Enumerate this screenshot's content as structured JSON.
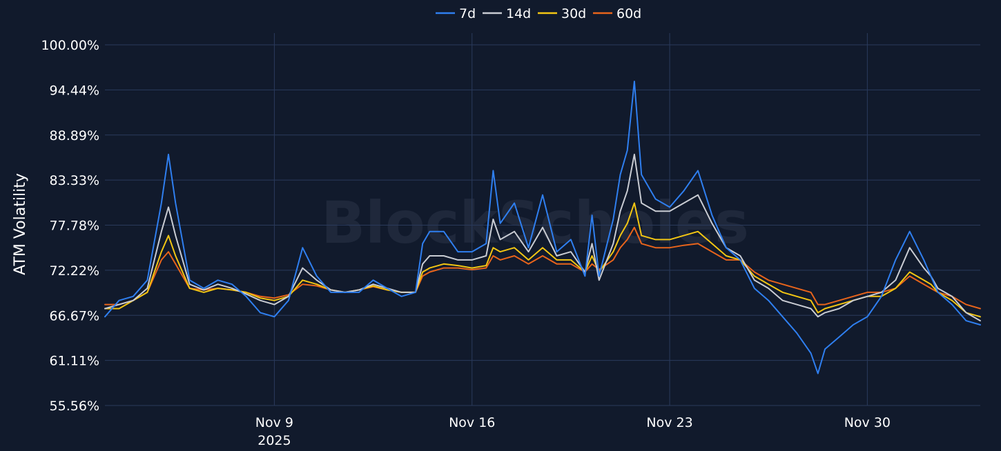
{
  "colors": {
    "background": "#111a2c",
    "grid": "#2a3a5c",
    "text": "#ffffff",
    "watermark": "#2b3448"
  },
  "watermark_text": "BlockScholes",
  "chart_data": {
    "type": "line",
    "ylabel": "ATM Volatility",
    "y_tick_labels": [
      "100.00%",
      "94.44%",
      "88.89%",
      "83.33%",
      "77.78%",
      "72.22%",
      "66.67%",
      "61.11%",
      "55.56%"
    ],
    "y_ticks": [
      100.0,
      94.44,
      88.89,
      83.33,
      77.78,
      72.22,
      66.67,
      61.11,
      55.56
    ],
    "ylim": [
      55.56,
      100.0
    ],
    "x_range": [
      "2025-11-03",
      "2025-12-04"
    ],
    "x_ticks": [
      {
        "date": "2025-11-09",
        "label": "Nov 9",
        "sublabel": "2025"
      },
      {
        "date": "2025-11-16",
        "label": "Nov 16",
        "sublabel": ""
      },
      {
        "date": "2025-11-23",
        "label": "Nov 23",
        "sublabel": ""
      },
      {
        "date": "2025-11-30",
        "label": "Nov 30",
        "sublabel": ""
      }
    ],
    "grid": true,
    "legend_position": "top-center",
    "series": [
      {
        "name": "7d",
        "color": "#2f7ff0",
        "x": [
          "2025-11-03 00:00",
          "2025-11-03 12:00",
          "2025-11-04 00:00",
          "2025-11-04 12:00",
          "2025-11-05 00:00",
          "2025-11-05 06:00",
          "2025-11-05 12:00",
          "2025-11-06 00:00",
          "2025-11-06 12:00",
          "2025-11-07 00:00",
          "2025-11-07 12:00",
          "2025-11-08 00:00",
          "2025-11-08 12:00",
          "2025-11-09 00:00",
          "2025-11-09 12:00",
          "2025-11-10 00:00",
          "2025-11-10 12:00",
          "2025-11-11 00:00",
          "2025-11-11 12:00",
          "2025-11-12 00:00",
          "2025-11-12 12:00",
          "2025-11-13 00:00",
          "2025-11-13 12:00",
          "2025-11-14 00:00",
          "2025-11-14 06:00",
          "2025-11-14 12:00",
          "2025-11-15 00:00",
          "2025-11-15 12:00",
          "2025-11-16 00:00",
          "2025-11-16 12:00",
          "2025-11-16 18:00",
          "2025-11-17 00:00",
          "2025-11-17 12:00",
          "2025-11-18 00:00",
          "2025-11-18 12:00",
          "2025-11-19 00:00",
          "2025-11-19 12:00",
          "2025-11-20 00:00",
          "2025-11-20 06:00",
          "2025-11-20 12:00",
          "2025-11-21 00:00",
          "2025-11-21 06:00",
          "2025-11-21 12:00",
          "2025-11-21 18:00",
          "2025-11-22 00:00",
          "2025-11-22 12:00",
          "2025-11-23 00:00",
          "2025-11-23 12:00",
          "2025-11-24 00:00",
          "2025-11-24 12:00",
          "2025-11-25 00:00",
          "2025-11-25 12:00",
          "2025-11-26 00:00",
          "2025-11-26 12:00",
          "2025-11-27 00:00",
          "2025-11-27 12:00",
          "2025-11-28 00:00",
          "2025-11-28 06:00",
          "2025-11-28 12:00",
          "2025-11-29 00:00",
          "2025-11-29 12:00",
          "2025-11-30 00:00",
          "2025-11-30 12:00",
          "2025-12-01 00:00",
          "2025-12-01 12:00",
          "2025-12-02 00:00",
          "2025-12-02 06:00",
          "2025-12-02 12:00",
          "2025-12-03 00:00",
          "2025-12-03 12:00",
          "2025-12-04 00:00"
        ],
        "values": [
          66.5,
          68.5,
          69.0,
          71.0,
          80.5,
          86.5,
          80.5,
          71.0,
          70.0,
          71.0,
          70.5,
          69.0,
          67.0,
          66.5,
          68.5,
          75.0,
          71.5,
          69.5,
          69.5,
          69.5,
          71.0,
          70.0,
          69.0,
          69.5,
          75.5,
          77.0,
          77.0,
          74.5,
          74.5,
          75.5,
          84.5,
          78.0,
          80.5,
          75.0,
          81.5,
          74.5,
          76.0,
          71.5,
          79.0,
          71.5,
          78.5,
          84.0,
          87.0,
          95.5,
          84.0,
          81.0,
          80.0,
          82.0,
          84.5,
          79.0,
          75.0,
          73.5,
          70.0,
          68.5,
          66.5,
          64.5,
          62.0,
          59.5,
          62.5,
          64.0,
          65.5,
          66.5,
          69.0,
          73.5,
          77.0,
          73.5,
          71.5,
          69.5,
          68.0,
          66.0,
          65.5
        ]
      },
      {
        "name": "14d",
        "color": "#c9ccd3",
        "x": [
          "2025-11-03 00:00",
          "2025-11-03 12:00",
          "2025-11-04 00:00",
          "2025-11-04 12:00",
          "2025-11-05 00:00",
          "2025-11-05 06:00",
          "2025-11-05 12:00",
          "2025-11-06 00:00",
          "2025-11-06 12:00",
          "2025-11-07 00:00",
          "2025-11-07 12:00",
          "2025-11-08 00:00",
          "2025-11-08 12:00",
          "2025-11-09 00:00",
          "2025-11-09 12:00",
          "2025-11-10 00:00",
          "2025-11-10 12:00",
          "2025-11-11 00:00",
          "2025-11-11 12:00",
          "2025-11-12 00:00",
          "2025-11-12 12:00",
          "2025-11-13 00:00",
          "2025-11-13 12:00",
          "2025-11-14 00:00",
          "2025-11-14 06:00",
          "2025-11-14 12:00",
          "2025-11-15 00:00",
          "2025-11-15 12:00",
          "2025-11-16 00:00",
          "2025-11-16 12:00",
          "2025-11-16 18:00",
          "2025-11-17 00:00",
          "2025-11-17 12:00",
          "2025-11-18 00:00",
          "2025-11-18 12:00",
          "2025-11-19 00:00",
          "2025-11-19 12:00",
          "2025-11-20 00:00",
          "2025-11-20 06:00",
          "2025-11-20 12:00",
          "2025-11-21 00:00",
          "2025-11-21 06:00",
          "2025-11-21 12:00",
          "2025-11-21 18:00",
          "2025-11-22 00:00",
          "2025-11-22 12:00",
          "2025-11-23 00:00",
          "2025-11-23 12:00",
          "2025-11-24 00:00",
          "2025-11-24 12:00",
          "2025-11-25 00:00",
          "2025-11-25 12:00",
          "2025-11-26 00:00",
          "2025-11-26 12:00",
          "2025-11-27 00:00",
          "2025-11-27 12:00",
          "2025-11-28 00:00",
          "2025-11-28 06:00",
          "2025-11-28 12:00",
          "2025-11-29 00:00",
          "2025-11-29 12:00",
          "2025-11-30 00:00",
          "2025-11-30 12:00",
          "2025-12-01 00:00",
          "2025-12-01 12:00",
          "2025-12-02 00:00",
          "2025-12-02 06:00",
          "2025-12-02 12:00",
          "2025-12-03 00:00",
          "2025-12-03 12:00",
          "2025-12-04 00:00"
        ],
        "values": [
          67.5,
          68.0,
          68.5,
          70.0,
          77.0,
          80.0,
          76.5,
          70.5,
          69.8,
          70.5,
          70.0,
          69.3,
          68.5,
          68.0,
          69.0,
          72.5,
          71.0,
          69.8,
          69.5,
          69.8,
          70.5,
          70.0,
          69.5,
          69.5,
          73.0,
          74.0,
          74.0,
          73.5,
          73.5,
          74.0,
          78.5,
          76.0,
          77.0,
          74.5,
          77.5,
          74.0,
          74.5,
          72.0,
          75.5,
          71.0,
          75.5,
          79.5,
          82.0,
          86.5,
          80.5,
          79.5,
          79.5,
          80.5,
          81.5,
          78.0,
          75.0,
          74.0,
          71.0,
          70.0,
          68.5,
          68.0,
          67.5,
          66.5,
          67.0,
          67.5,
          68.5,
          69.0,
          69.5,
          71.0,
          75.0,
          72.5,
          71.5,
          70.0,
          69.0,
          67.0,
          66.0
        ]
      },
      {
        "name": "30d",
        "color": "#f3c613",
        "x": [
          "2025-11-03 00:00",
          "2025-11-03 12:00",
          "2025-11-04 00:00",
          "2025-11-04 12:00",
          "2025-11-05 00:00",
          "2025-11-05 06:00",
          "2025-11-05 12:00",
          "2025-11-06 00:00",
          "2025-11-06 12:00",
          "2025-11-07 00:00",
          "2025-11-07 12:00",
          "2025-11-08 00:00",
          "2025-11-08 12:00",
          "2025-11-09 00:00",
          "2025-11-09 12:00",
          "2025-11-10 00:00",
          "2025-11-10 12:00",
          "2025-11-11 00:00",
          "2025-11-11 12:00",
          "2025-11-12 00:00",
          "2025-11-12 12:00",
          "2025-11-13 00:00",
          "2025-11-13 12:00",
          "2025-11-14 00:00",
          "2025-11-14 06:00",
          "2025-11-14 12:00",
          "2025-11-15 00:00",
          "2025-11-15 12:00",
          "2025-11-16 00:00",
          "2025-11-16 12:00",
          "2025-11-16 18:00",
          "2025-11-17 00:00",
          "2025-11-17 12:00",
          "2025-11-18 00:00",
          "2025-11-18 12:00",
          "2025-11-19 00:00",
          "2025-11-19 12:00",
          "2025-11-20 00:00",
          "2025-11-20 06:00",
          "2025-11-20 12:00",
          "2025-11-21 00:00",
          "2025-11-21 06:00",
          "2025-11-21 12:00",
          "2025-11-21 18:00",
          "2025-11-22 00:00",
          "2025-11-22 12:00",
          "2025-11-23 00:00",
          "2025-11-23 12:00",
          "2025-11-24 00:00",
          "2025-11-24 12:00",
          "2025-11-25 00:00",
          "2025-11-25 12:00",
          "2025-11-26 00:00",
          "2025-11-26 12:00",
          "2025-11-27 00:00",
          "2025-11-27 12:00",
          "2025-11-28 00:00",
          "2025-11-28 06:00",
          "2025-11-28 12:00",
          "2025-11-29 00:00",
          "2025-11-29 12:00",
          "2025-11-30 00:00",
          "2025-11-30 12:00",
          "2025-12-01 00:00",
          "2025-12-01 12:00",
          "2025-12-02 00:00",
          "2025-12-02 06:00",
          "2025-12-02 12:00",
          "2025-12-03 00:00",
          "2025-12-03 12:00",
          "2025-12-04 00:00"
        ],
        "values": [
          67.5,
          67.5,
          68.5,
          69.5,
          74.5,
          76.5,
          74.0,
          70.0,
          69.5,
          70.0,
          69.8,
          69.5,
          68.8,
          68.5,
          69.0,
          71.0,
          70.5,
          69.8,
          69.5,
          69.8,
          70.3,
          69.8,
          69.5,
          69.5,
          72.0,
          72.5,
          73.0,
          72.8,
          72.5,
          72.8,
          75.0,
          74.5,
          75.0,
          73.5,
          75.0,
          73.5,
          73.5,
          72.0,
          74.0,
          72.0,
          74.5,
          76.5,
          78.0,
          80.5,
          76.5,
          76.0,
          76.0,
          76.5,
          77.0,
          75.5,
          74.0,
          73.5,
          71.5,
          70.5,
          69.5,
          69.0,
          68.5,
          67.0,
          67.5,
          68.0,
          68.5,
          69.0,
          69.0,
          70.0,
          72.0,
          71.0,
          70.5,
          69.5,
          68.5,
          67.0,
          66.5
        ]
      },
      {
        "name": "60d",
        "color": "#e8641b",
        "x": [
          "2025-11-03 00:00",
          "2025-11-03 12:00",
          "2025-11-04 00:00",
          "2025-11-04 12:00",
          "2025-11-05 00:00",
          "2025-11-05 06:00",
          "2025-11-05 12:00",
          "2025-11-06 00:00",
          "2025-11-06 12:00",
          "2025-11-07 00:00",
          "2025-11-07 12:00",
          "2025-11-08 00:00",
          "2025-11-08 12:00",
          "2025-11-09 00:00",
          "2025-11-09 12:00",
          "2025-11-10 00:00",
          "2025-11-10 12:00",
          "2025-11-11 00:00",
          "2025-11-11 12:00",
          "2025-11-12 00:00",
          "2025-11-12 12:00",
          "2025-11-13 00:00",
          "2025-11-13 12:00",
          "2025-11-14 00:00",
          "2025-11-14 06:00",
          "2025-11-14 12:00",
          "2025-11-15 00:00",
          "2025-11-15 12:00",
          "2025-11-16 00:00",
          "2025-11-16 12:00",
          "2025-11-16 18:00",
          "2025-11-17 00:00",
          "2025-11-17 12:00",
          "2025-11-18 00:00",
          "2025-11-18 12:00",
          "2025-11-19 00:00",
          "2025-11-19 12:00",
          "2025-11-20 00:00",
          "2025-11-20 06:00",
          "2025-11-20 12:00",
          "2025-11-21 00:00",
          "2025-11-21 06:00",
          "2025-11-21 12:00",
          "2025-11-21 18:00",
          "2025-11-22 00:00",
          "2025-11-22 12:00",
          "2025-11-23 00:00",
          "2025-11-23 12:00",
          "2025-11-24 00:00",
          "2025-11-24 12:00",
          "2025-11-25 00:00",
          "2025-11-25 12:00",
          "2025-11-26 00:00",
          "2025-11-26 12:00",
          "2025-11-27 00:00",
          "2025-11-27 12:00",
          "2025-11-28 00:00",
          "2025-11-28 06:00",
          "2025-11-28 12:00",
          "2025-11-29 00:00",
          "2025-11-29 12:00",
          "2025-11-30 00:00",
          "2025-11-30 12:00",
          "2025-12-01 00:00",
          "2025-12-01 12:00",
          "2025-12-02 00:00",
          "2025-12-02 06:00",
          "2025-12-02 12:00",
          "2025-12-03 00:00",
          "2025-12-03 12:00",
          "2025-12-04 00:00"
        ],
        "values": [
          68.0,
          68.0,
          68.5,
          69.5,
          73.5,
          74.5,
          73.0,
          70.0,
          69.8,
          70.0,
          69.8,
          69.5,
          69.0,
          68.8,
          69.2,
          70.5,
          70.3,
          69.8,
          69.5,
          69.8,
          70.2,
          69.8,
          69.5,
          69.5,
          71.5,
          72.0,
          72.5,
          72.5,
          72.3,
          72.5,
          74.0,
          73.5,
          74.0,
          73.0,
          74.0,
          73.0,
          73.0,
          72.0,
          73.0,
          72.3,
          73.5,
          75.0,
          76.0,
          77.5,
          75.5,
          75.0,
          75.0,
          75.3,
          75.5,
          74.5,
          73.5,
          73.5,
          72.0,
          71.0,
          70.5,
          70.0,
          69.5,
          68.0,
          68.0,
          68.5,
          69.0,
          69.5,
          69.5,
          70.0,
          71.5,
          70.5,
          70.0,
          69.5,
          69.0,
          68.0,
          67.5
        ]
      }
    ]
  }
}
